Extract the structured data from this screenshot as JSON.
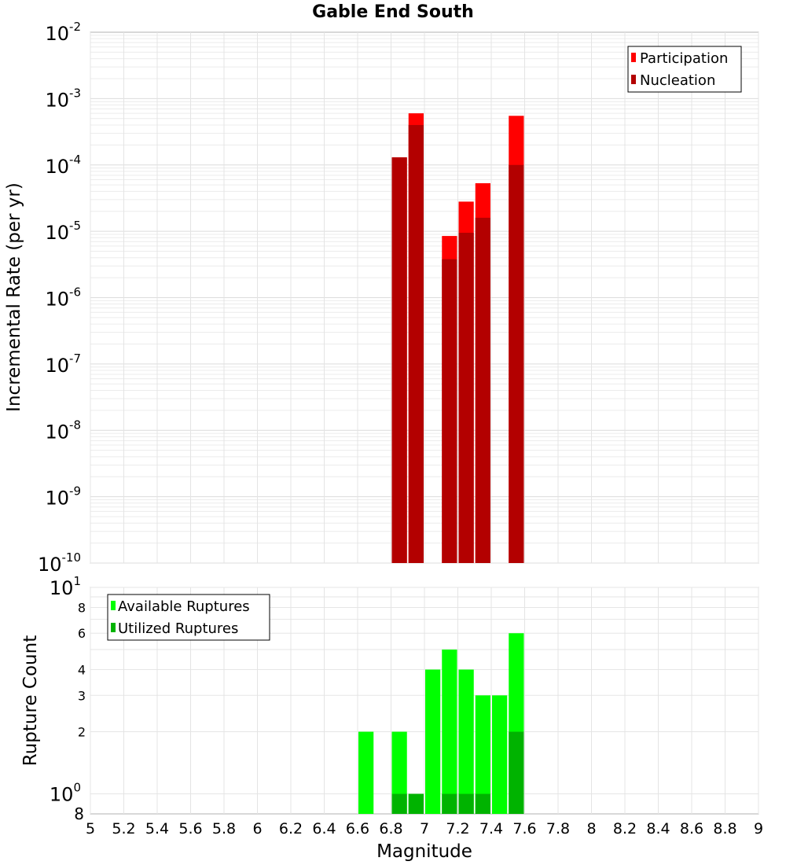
{
  "chart_data": [
    {
      "type": "bar",
      "title": "Gable End South",
      "xlabel": "",
      "ylabel": "Incremental Rate (per yr)",
      "y_scale": "log",
      "ylim": [
        1e-10,
        0.01
      ],
      "xlim": [
        5,
        9
      ],
      "bar_width": 0.1,
      "grid": true,
      "legend_position": "top-right",
      "x": [
        6.85,
        6.95,
        7.15,
        7.25,
        7.35,
        7.55
      ],
      "y_tick_labels": [
        {
          "base": "10",
          "exp": "-10"
        },
        {
          "base": "10",
          "exp": "-9"
        },
        {
          "base": "10",
          "exp": "-8"
        },
        {
          "base": "10",
          "exp": "-7"
        },
        {
          "base": "10",
          "exp": "-6"
        },
        {
          "base": "10",
          "exp": "-5"
        },
        {
          "base": "10",
          "exp": "-4"
        },
        {
          "base": "10",
          "exp": "-3"
        },
        {
          "base": "10",
          "exp": "-2"
        }
      ],
      "series": [
        {
          "name": "Participation",
          "color": "#ff0000",
          "values": [
            0.00013,
            0.0006,
            8.5e-06,
            2.8e-05,
            5.3e-05,
            0.00055
          ]
        },
        {
          "name": "Nucleation",
          "color": "#b30000",
          "values": [
            0.00013,
            0.0004,
            3.8e-06,
            9.5e-06,
            1.6e-05,
            0.0001
          ]
        }
      ]
    },
    {
      "type": "bar",
      "title": "",
      "xlabel": "Magnitude",
      "ylabel": "Rupture Count",
      "y_scale": "log",
      "ylim": [
        0.8,
        10
      ],
      "xlim": [
        5,
        9
      ],
      "bar_width": 0.1,
      "grid": true,
      "legend_position": "top-left",
      "x": [
        6.65,
        6.85,
        6.95,
        7.05,
        7.15,
        7.25,
        7.35,
        7.45,
        7.55
      ],
      "x_tick_labels": [
        "5",
        "5.2",
        "5.4",
        "5.6",
        "5.8",
        "6",
        "6.2",
        "6.4",
        "6.6",
        "6.8",
        "7",
        "7.2",
        "7.4",
        "7.6",
        "7.8",
        "8",
        "8.2",
        "8.4",
        "8.6",
        "8.8",
        "9"
      ],
      "y_minor_tick_labels": [
        "2",
        "3",
        "4",
        "6",
        "8"
      ],
      "y_major_tick_labels": [
        {
          "base": "10",
          "exp": "0"
        },
        {
          "base": "10",
          "exp": "1"
        }
      ],
      "y_bottom_label": "8",
      "series": [
        {
          "name": "Available Ruptures",
          "color": "#00ff00",
          "values": [
            2,
            2,
            1,
            4,
            5,
            4,
            3,
            3,
            6
          ]
        },
        {
          "name": "Utilized Ruptures",
          "color": "#00b300",
          "values": [
            0,
            1,
            1,
            0,
            1,
            1,
            1,
            0,
            2
          ]
        }
      ]
    }
  ]
}
